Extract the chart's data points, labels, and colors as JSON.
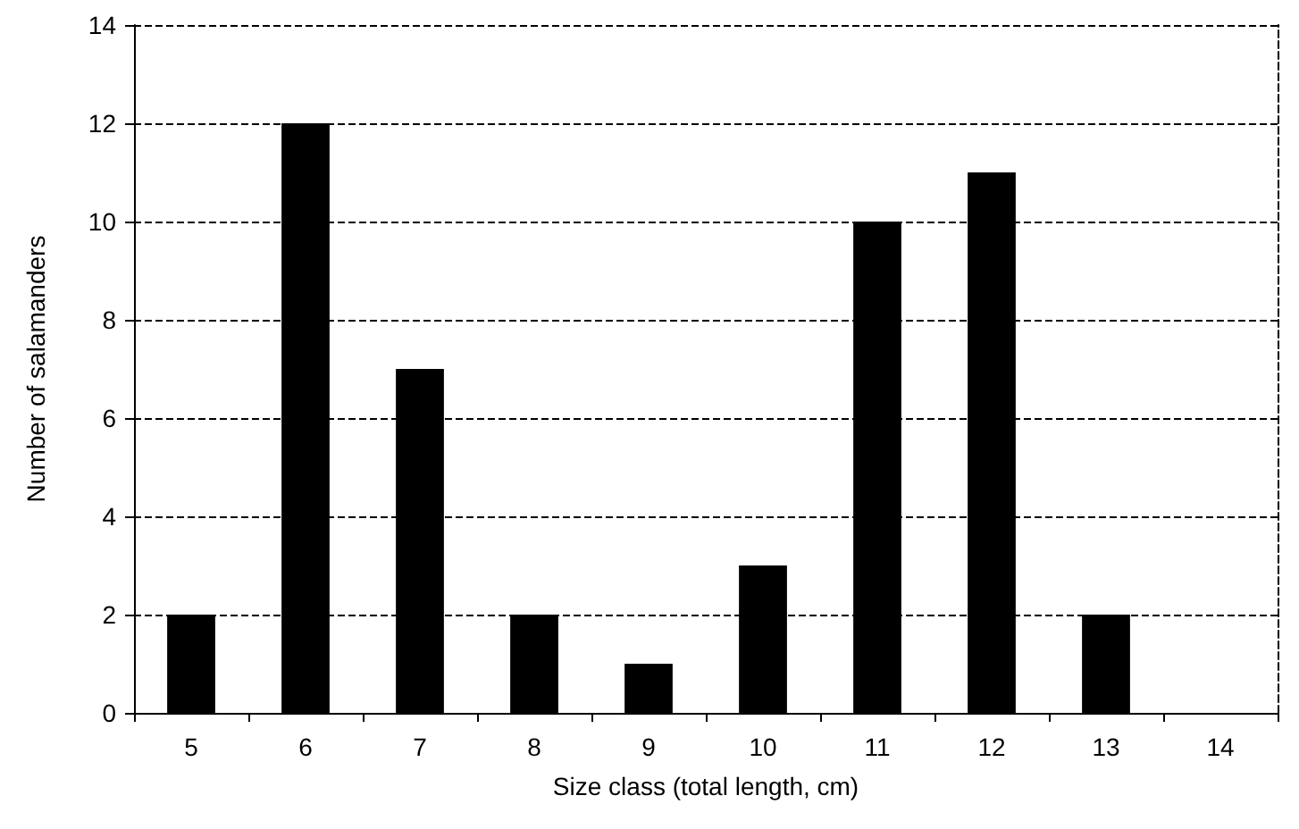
{
  "chart_data": {
    "type": "bar",
    "xlabel": "Size class (total length, cm)",
    "ylabel": "Number of salamanders",
    "categories": [
      "5",
      "6",
      "7",
      "8",
      "9",
      "10",
      "11",
      "12",
      "13",
      "14"
    ],
    "values": [
      2,
      12,
      7,
      2,
      1,
      3,
      10,
      11,
      2,
      0
    ],
    "color": "#000000",
    "ylim": [
      0,
      14
    ],
    "yticks": [
      0,
      2,
      4,
      6,
      8,
      10,
      12,
      14
    ],
    "grid": "y"
  }
}
